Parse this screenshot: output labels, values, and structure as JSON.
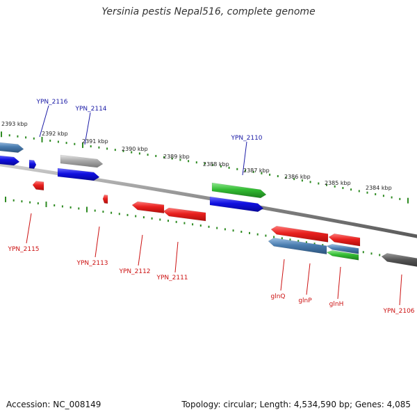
{
  "title": "Yersinia pestis Nepal516, complete genome",
  "footer": {
    "accession": "Accession: NC_008149",
    "summary": "Topology: circular; Length: 4,534,590 bp; Genes: 4,085"
  },
  "colors": {
    "backbone": "#8a8a8a",
    "tick": "#2e8b22",
    "label_top": "#1a1aa6",
    "label_bottom": "#cc1111",
    "red": "#e8201e",
    "blue": "#1010e0",
    "green": "#33bb33",
    "steel": "#4a7db0",
    "gray": "#aaaaaa",
    "dark": "#555555"
  },
  "ruler": {
    "scale_labels": [
      "2393 kbp",
      "2392 kbp",
      "2391 kbp",
      "2390 kbp",
      "2389 kbp",
      "2388 kbp",
      "2387 kbp",
      "2386 kbp",
      "2385 kbp",
      "2384 kbp"
    ]
  },
  "genes": [
    {
      "name": "",
      "strand": "+",
      "color": "steel",
      "labelled": false
    },
    {
      "name": "",
      "strand": "+",
      "color": "blue",
      "labelled": false
    },
    {
      "name": "YPN_2116",
      "strand": "+",
      "color": "blue",
      "labelled": true
    },
    {
      "name": "YPN_2114",
      "strand": "+",
      "color": "gray",
      "labelled": true
    },
    {
      "name": "",
      "strand": "+",
      "color": "blue",
      "labelled": false
    },
    {
      "name": "YPN_2110",
      "strand": "+",
      "color": "green",
      "labelled": true
    },
    {
      "name": "",
      "strand": "+",
      "color": "blue",
      "labelled": false
    },
    {
      "name": "YPN_2115",
      "strand": "-",
      "color": "red",
      "labelled": true
    },
    {
      "name": "YPN_2113",
      "strand": "-",
      "color": "red",
      "labelled": true
    },
    {
      "name": "YPN_2112",
      "strand": "-",
      "color": "red",
      "labelled": true
    },
    {
      "name": "YPN_2111",
      "strand": "-",
      "color": "red",
      "labelled": true
    },
    {
      "name": "glnQ",
      "strand": "-",
      "color": "red",
      "labelled": true
    },
    {
      "name": "glnP",
      "strand": "-",
      "color": "steel",
      "labelled": true
    },
    {
      "name": "glnH",
      "strand": "-",
      "color": "green",
      "labelled": true
    },
    {
      "name": "",
      "strand": "-",
      "color": "red",
      "labelled": false
    },
    {
      "name": "",
      "strand": "-",
      "color": "steel",
      "labelled": false
    },
    {
      "name": "YPN_2106",
      "strand": "-",
      "color": "dark",
      "labelled": true
    }
  ]
}
